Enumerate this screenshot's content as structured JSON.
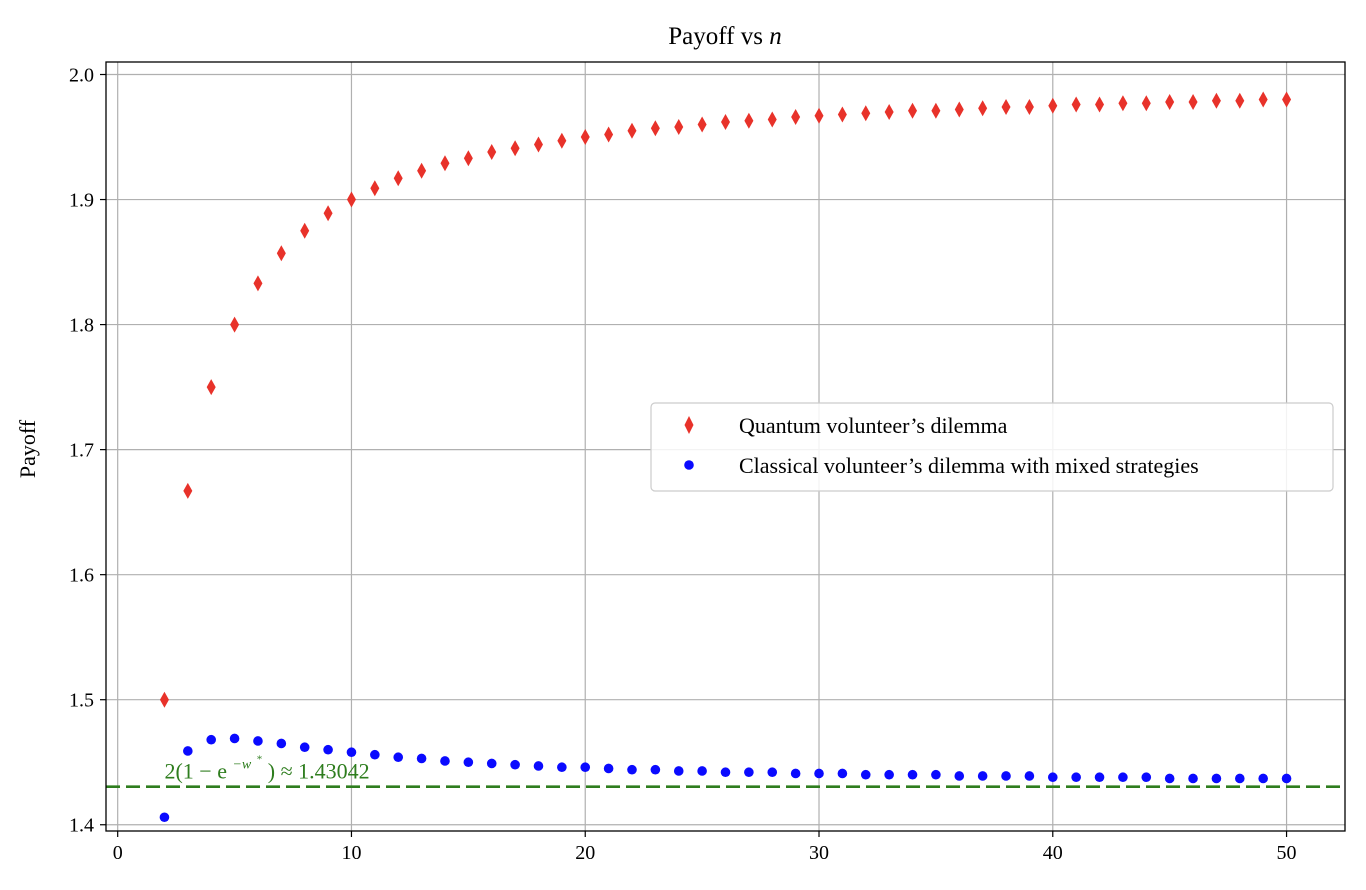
{
  "chart_data": {
    "type": "scatter",
    "title": "Payoff vs",
    "title_var": "n",
    "xlabel": "",
    "ylabel": "Payoff",
    "xlim": [
      -0.5,
      52.5
    ],
    "ylim": [
      1.395,
      2.01
    ],
    "xticks": [
      0,
      10,
      20,
      30,
      40,
      50
    ],
    "yticks": [
      1.4,
      1.5,
      1.6,
      1.7,
      1.8,
      1.9,
      2.0
    ],
    "ytick_labels": [
      "1.4",
      "1.5",
      "1.6",
      "1.7",
      "1.8",
      "1.9",
      "2.0"
    ],
    "grid": true,
    "legend_position": "center-right",
    "series": [
      {
        "name": "Quantum volunteer’s dilemma",
        "marker": "diamond",
        "color": "#e8322a",
        "x": [
          2,
          3,
          4,
          5,
          6,
          7,
          8,
          9,
          10,
          11,
          12,
          13,
          14,
          15,
          16,
          17,
          18,
          19,
          20,
          21,
          22,
          23,
          24,
          25,
          26,
          27,
          28,
          29,
          30,
          31,
          32,
          33,
          34,
          35,
          36,
          37,
          38,
          39,
          40,
          41,
          42,
          43,
          44,
          45,
          46,
          47,
          48,
          49,
          50
        ],
        "y": [
          1.5,
          1.667,
          1.75,
          1.8,
          1.833,
          1.857,
          1.875,
          1.889,
          1.9,
          1.909,
          1.917,
          1.923,
          1.929,
          1.933,
          1.938,
          1.941,
          1.944,
          1.947,
          1.95,
          1.952,
          1.955,
          1.957,
          1.958,
          1.96,
          1.962,
          1.963,
          1.964,
          1.966,
          1.967,
          1.968,
          1.969,
          1.97,
          1.971,
          1.971,
          1.972,
          1.973,
          1.974,
          1.974,
          1.975,
          1.976,
          1.976,
          1.977,
          1.977,
          1.978,
          1.978,
          1.979,
          1.979,
          1.98,
          1.98
        ]
      },
      {
        "name": "Classical volunteer’s dilemma with mixed strategies",
        "marker": "circle",
        "color": "#0a0aff",
        "x": [
          2,
          3,
          4,
          5,
          6,
          7,
          8,
          9,
          10,
          11,
          12,
          13,
          14,
          15,
          16,
          17,
          18,
          19,
          20,
          21,
          22,
          23,
          24,
          25,
          26,
          27,
          28,
          29,
          30,
          31,
          32,
          33,
          34,
          35,
          36,
          37,
          38,
          39,
          40,
          41,
          42,
          43,
          44,
          45,
          46,
          47,
          48,
          49,
          50
        ],
        "y": [
          1.406,
          1.459,
          1.468,
          1.469,
          1.467,
          1.465,
          1.462,
          1.46,
          1.458,
          1.456,
          1.454,
          1.453,
          1.451,
          1.45,
          1.449,
          1.448,
          1.447,
          1.446,
          1.446,
          1.445,
          1.444,
          1.444,
          1.443,
          1.443,
          1.442,
          1.442,
          1.442,
          1.441,
          1.441,
          1.441,
          1.44,
          1.44,
          1.44,
          1.44,
          1.439,
          1.439,
          1.439,
          1.439,
          1.438,
          1.438,
          1.438,
          1.438,
          1.438,
          1.437,
          1.437,
          1.437,
          1.437,
          1.437,
          1.437
        ]
      }
    ],
    "reference_line": {
      "y": 1.43042,
      "color": "#2e7d1e",
      "style": "dashed",
      "label_prefix": "2(1",
      "label_minus": "−",
      "label_e": "e",
      "label_exp": "−w",
      "label_star": "*",
      "label_suffix": ")",
      "label_approx": "≈",
      "label_value": "1.43042",
      "label_x": 2
    }
  }
}
